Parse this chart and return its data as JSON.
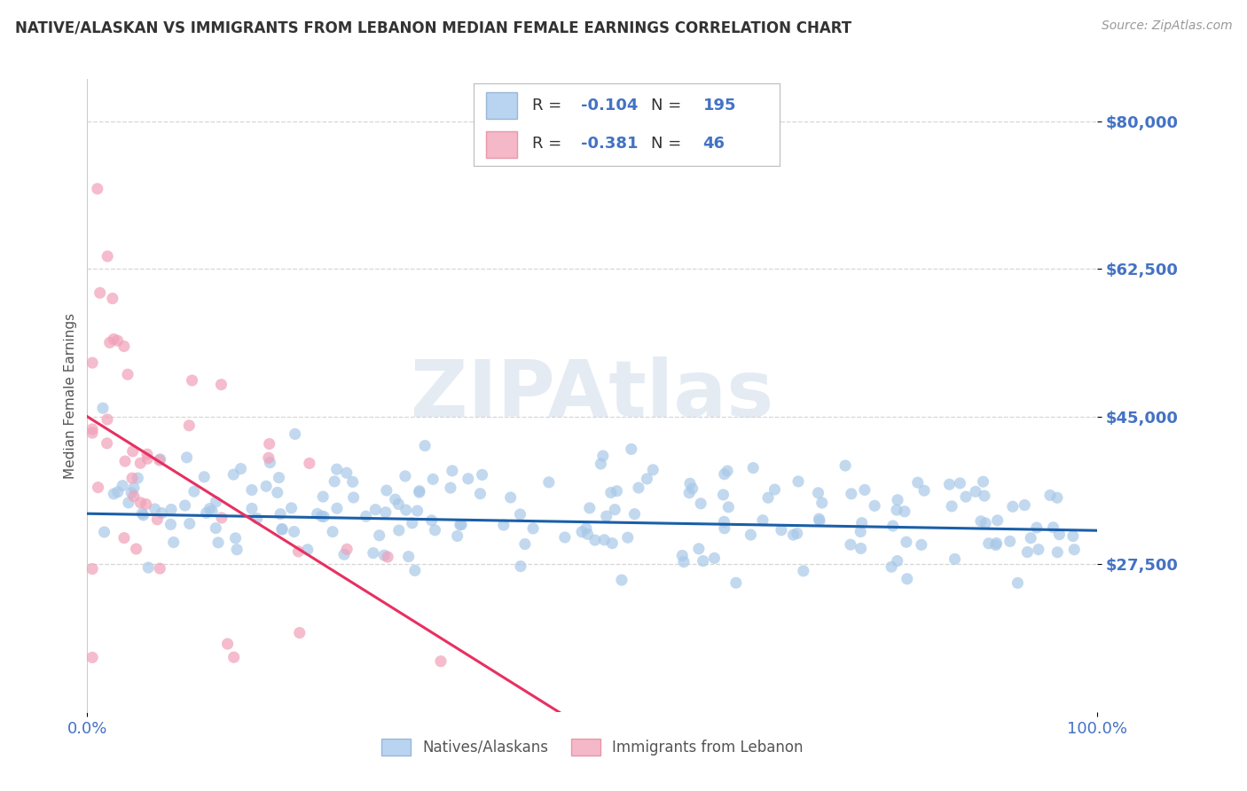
{
  "title": "NATIVE/ALASKAN VS IMMIGRANTS FROM LEBANON MEDIAN FEMALE EARNINGS CORRELATION CHART",
  "source": "Source: ZipAtlas.com",
  "ylabel": "Median Female Earnings",
  "yticks": [
    27500,
    45000,
    62500,
    80000
  ],
  "ytick_labels": [
    "$27,500",
    "$45,000",
    "$62,500",
    "$80,000"
  ],
  "ylim_min": 10000,
  "ylim_max": 85000,
  "xlim_min": 0.0,
  "xlim_max": 100.0,
  "blue_R": -0.104,
  "blue_N": 195,
  "pink_R": -0.381,
  "pink_N": 46,
  "blue_dot_color": "#a8c8e8",
  "blue_line_color": "#1a5fa8",
  "pink_dot_color": "#f0a0b8",
  "pink_line_color": "#e83060",
  "legend_label_blue": "Natives/Alaskans",
  "legend_label_pink": "Immigrants from Lebanon",
  "bg_color": "#ffffff",
  "title_color": "#333333",
  "axis_val_color": "#4472c4",
  "grid_color": "#cccccc",
  "watermark_color": "#d0dcea",
  "watermark_text": "ZIPAtlas",
  "source_color": "#999999",
  "ylabel_color": "#555555"
}
